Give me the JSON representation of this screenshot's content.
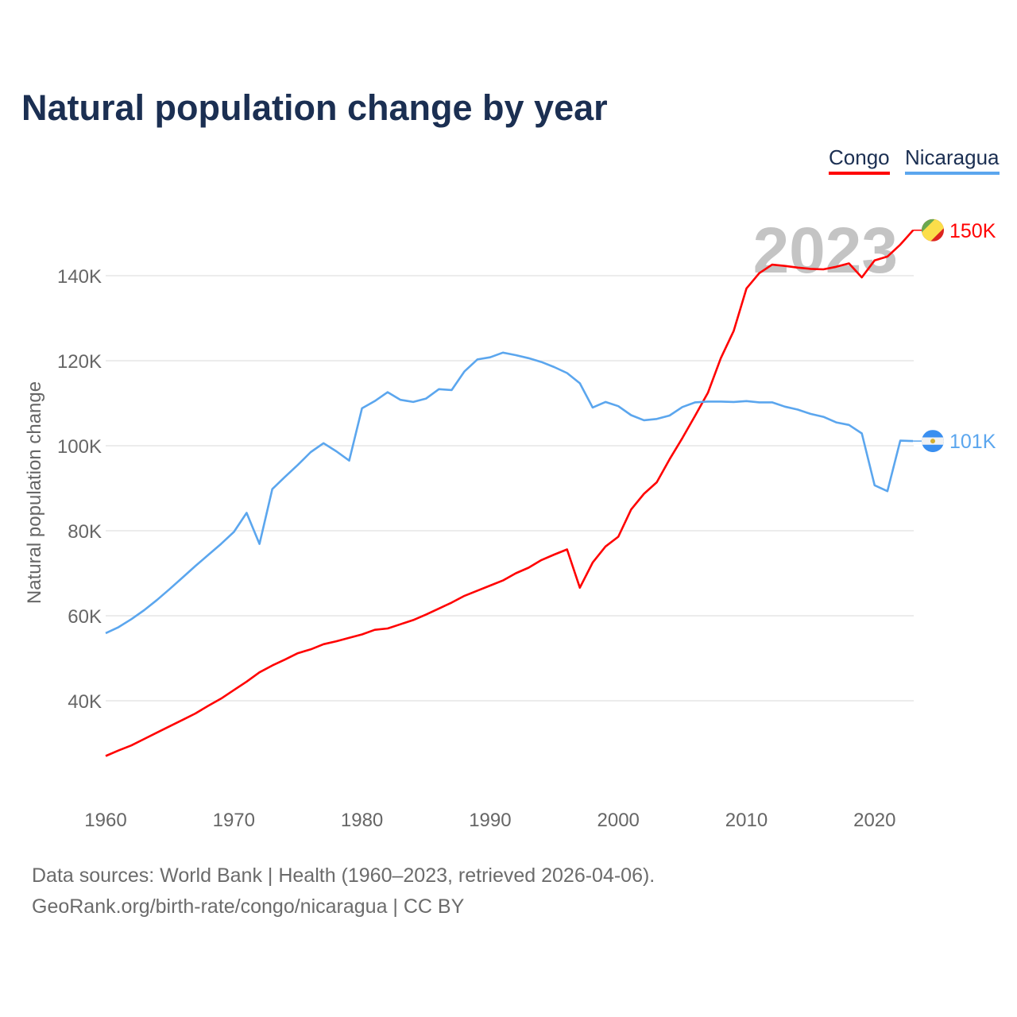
{
  "title": "Natural population change by year",
  "footer": {
    "source": "Data sources: World Bank | Health (1960–2023, retrieved 2026-04-06).",
    "credit": "GeoRank.org/birth-rate/congo/nicaragua | CC BY"
  },
  "chart_data": {
    "type": "line",
    "title": "Natural population change by year",
    "xlabel": "",
    "ylabel": "Natural population change",
    "year_watermark": "2023",
    "xlim": [
      1960,
      2023
    ],
    "ylim": [
      20000,
      150000
    ],
    "x_ticks": [
      1960,
      1970,
      1980,
      1990,
      2000,
      2010,
      2020
    ],
    "x_tick_labels": [
      "1960",
      "1970",
      "1980",
      "1990",
      "2000",
      "2010",
      "2020"
    ],
    "y_ticks": [
      40000,
      60000,
      80000,
      100000,
      120000,
      140000
    ],
    "y_tick_labels": [
      "40K",
      "60K",
      "80K",
      "100K",
      "120K",
      "140K"
    ],
    "grid": true,
    "legend_position": "top-right",
    "x": [
      1960,
      1961,
      1962,
      1963,
      1964,
      1965,
      1966,
      1967,
      1968,
      1969,
      1970,
      1971,
      1972,
      1973,
      1974,
      1975,
      1976,
      1977,
      1978,
      1979,
      1980,
      1981,
      1982,
      1983,
      1984,
      1985,
      1986,
      1987,
      1988,
      1989,
      1990,
      1991,
      1992,
      1993,
      1994,
      1995,
      1996,
      1997,
      1998,
      1999,
      2000,
      2001,
      2002,
      2003,
      2004,
      2005,
      2006,
      2007,
      2008,
      2009,
      2010,
      2011,
      2012,
      2013,
      2014,
      2015,
      2016,
      2017,
      2018,
      2019,
      2020,
      2021,
      2022,
      2023
    ],
    "series": [
      {
        "name": "Congo",
        "color": "#ff0000",
        "end_label": "150K",
        "flag": "congo-flag",
        "values": [
          27000,
          28300,
          29500,
          31000,
          32500,
          34000,
          35500,
          37000,
          38800,
          40500,
          42500,
          44500,
          46700,
          48300,
          49700,
          51200,
          52100,
          53300,
          54000,
          54800,
          55600,
          56700,
          57000,
          58000,
          59000,
          60300,
          61700,
          63100,
          64700,
          65900,
          67100,
          68300,
          70000,
          71300,
          73100,
          74400,
          75600,
          66600,
          72500,
          76300,
          78600,
          85000,
          88700,
          91400,
          96800,
          101800,
          107100,
          112500,
          120600,
          127000,
          137000,
          140600,
          142600,
          142300,
          141900,
          141600,
          141500,
          142100,
          142900,
          139600,
          143600,
          144500,
          147300,
          150700
        ]
      },
      {
        "name": "Nicaragua",
        "color": "#5ba6ee",
        "end_label": "101K",
        "flag": "nicaragua-flag",
        "values": [
          55900,
          57300,
          59200,
          61300,
          63700,
          66300,
          69000,
          71700,
          74300,
          76900,
          79700,
          84200,
          76900,
          89800,
          92700,
          95500,
          98500,
          100600,
          98700,
          96500,
          108800,
          110500,
          112600,
          110800,
          110300,
          111100,
          113300,
          113100,
          117500,
          120300,
          120800,
          121900,
          121300,
          120600,
          119700,
          118500,
          117100,
          114700,
          109000,
          110300,
          109300,
          107200,
          106000,
          106300,
          107100,
          109100,
          110200,
          110400,
          110400,
          110300,
          110500,
          110200,
          110200,
          109200,
          108500,
          107500,
          106800,
          105500,
          104900,
          102900,
          90700,
          89300,
          101200,
          101100
        ]
      }
    ]
  }
}
